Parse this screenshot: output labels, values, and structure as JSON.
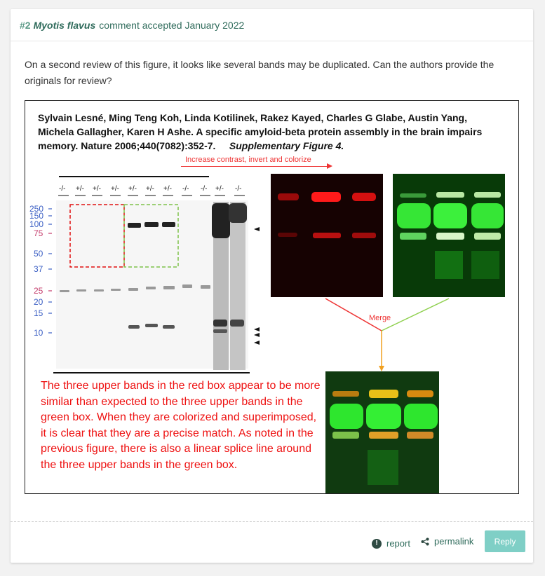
{
  "header": {
    "number": "#2",
    "species": "Myotis flavus",
    "meta": "comment accepted January 2022"
  },
  "comment": {
    "text": "On a second review of this figure, it looks like several bands may be duplicated. Can the authors provide the originals for review?"
  },
  "figure": {
    "citation": "Sylvain Lesné, Ming Teng Koh, Linda Kotilinek, Rakez Kayed, Charles G Glabe, Austin Yang, Michela Gallagher, Karen H Ashe. A specific amyloid-beta protein assembly in the brain impairs memory. Nature 2006;440(7082):352-7.",
    "supplementary": "Supplementary Figure 4.",
    "arrow_label": "Increase contrast, invert and colorize",
    "merge_label": "Merge",
    "lane_labels": [
      "-/-",
      "+/-",
      "+/-",
      "+/-",
      "+/-",
      "+/-",
      "+/-",
      "-/-",
      "-/-",
      "+/-",
      "-/-"
    ],
    "markers": [
      "250",
      "150",
      "100",
      "75",
      "50",
      "37",
      "25",
      "20",
      "15",
      "10"
    ],
    "annotation": "The three upper bands in the red box appear to be more similar than expected to the three upper bands in the green box. When they are colorized and superimposed, it is clear that they are a precise match. As noted in the previous figure, there is also a linear splice line around the three upper bands in the green box.",
    "colors": {
      "red_box": "#e11111",
      "green_box": "#7fc24a",
      "merge_line": "#e33",
      "green_line": "#8fd04f",
      "orange_line": "#f0a020"
    }
  },
  "footer": {
    "report_label": "report",
    "permalink_label": "permalink",
    "reply_label": "Reply"
  }
}
